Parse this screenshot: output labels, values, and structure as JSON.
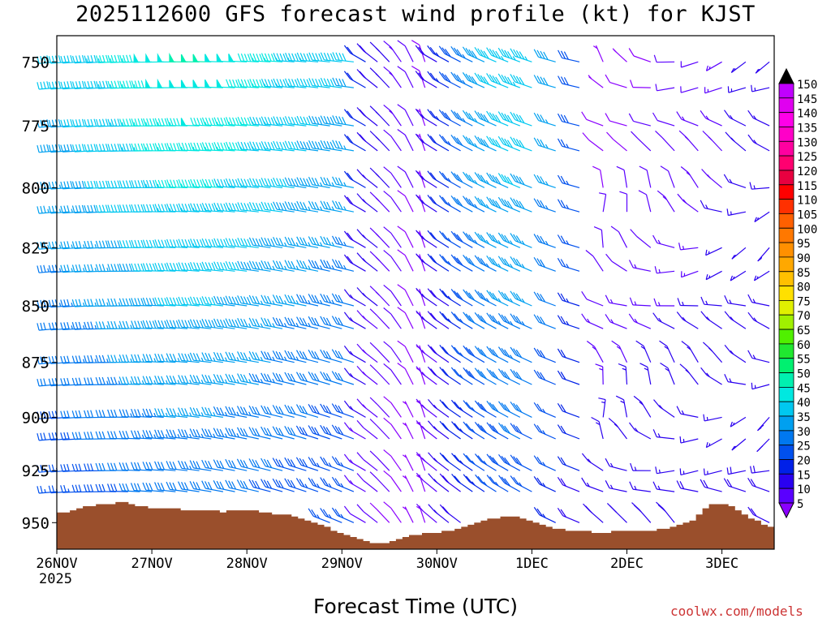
{
  "title": "2025112600 GFS forecast wind profile (kt) for KJST",
  "credit": "coolwx.com/models",
  "chart_data": {
    "type": "wind-barb-profile",
    "title": "2025112600 GFS forecast wind profile (kt) for KJST",
    "xlabel": "Forecast Time (UTC)",
    "ylabel": "",
    "x_ticks": [
      "26NOV",
      "27NOV",
      "28NOV",
      "29NOV",
      "30NOV",
      "1DEC",
      "2DEC",
      "3DEC"
    ],
    "x_year": "2025",
    "x_range_days": [
      0,
      7.55
    ],
    "y_ticks": [
      750,
      775,
      800,
      825,
      850,
      875,
      900,
      925,
      950
    ],
    "y_range_hpa": [
      740,
      963
    ],
    "levels_hpa": [
      750,
      760,
      775,
      785,
      800,
      810,
      825,
      835,
      850,
      860,
      875,
      885,
      900,
      910,
      925,
      935,
      950
    ],
    "times_hours": [
      0,
      3,
      6,
      9,
      12,
      15,
      18,
      21,
      24,
      27,
      30,
      33,
      36,
      39,
      42,
      45,
      48,
      51,
      54,
      57,
      60,
      63,
      66,
      69,
      72,
      75,
      78,
      81,
      84,
      87,
      90,
      93,
      96,
      99,
      102,
      105,
      108,
      111,
      114,
      117,
      120,
      126,
      132,
      138,
      144,
      150,
      156,
      162,
      168,
      174,
      180
    ],
    "colorbar_levels": [
      5,
      10,
      15,
      20,
      25,
      30,
      35,
      40,
      45,
      50,
      55,
      60,
      65,
      70,
      75,
      80,
      85,
      90,
      95,
      100,
      105,
      110,
      115,
      120,
      125,
      130,
      135,
      140,
      145,
      150
    ],
    "colorbar_colors": [
      "#8a00ff",
      "#5a00ff",
      "#2a00f0",
      "#0020e8",
      "#0050ee",
      "#0078f0",
      "#00a0f0",
      "#00c8f0",
      "#00e8e0",
      "#00f0b0",
      "#00f070",
      "#20e830",
      "#50f000",
      "#a0f000",
      "#e0f000",
      "#ffe000",
      "#ffc000",
      "#ffa800",
      "#ff9000",
      "#ff7800",
      "#ff6000",
      "#ff3000",
      "#ff0000",
      "#e80040",
      "#ff0070",
      "#ff00a0",
      "#ff00c8",
      "#ff00e8",
      "#e000f0",
      "#c000ff"
    ],
    "terrain_color": "#9a4f2c",
    "terrain_hpa": [
      945,
      945,
      944,
      943,
      942,
      942,
      941,
      941,
      941,
      940,
      940,
      941,
      942,
      942,
      943,
      943,
      943,
      943,
      943,
      944,
      944,
      944,
      944,
      944,
      944,
      945,
      944,
      944,
      944,
      944,
      944,
      945,
      945,
      946,
      946,
      946,
      947,
      948,
      949,
      950,
      951,
      952,
      954,
      955,
      956,
      957,
      958,
      959,
      960,
      960,
      960,
      959,
      958,
      957,
      956,
      956,
      955,
      955,
      955,
      954,
      954,
      953,
      952,
      951,
      950,
      949,
      948,
      948,
      947,
      947,
      947,
      948,
      949,
      950,
      951,
      952,
      953,
      953,
      954,
      954,
      954,
      954,
      955,
      955,
      955,
      954,
      954,
      954,
      954,
      954,
      954,
      954,
      953,
      953,
      952,
      951,
      950,
      949,
      946,
      943,
      941,
      941,
      941,
      942,
      944,
      946,
      948,
      949,
      951,
      952
    ],
    "wind_model": "synthetic approximation of barbs read from plot: westerly 20-55 kt through 29NOV, weakening and veering with a calm slot near 30NOV, 15-45 kt northwesterly 30NOV-1DEC, light variable after 2DEC"
  }
}
